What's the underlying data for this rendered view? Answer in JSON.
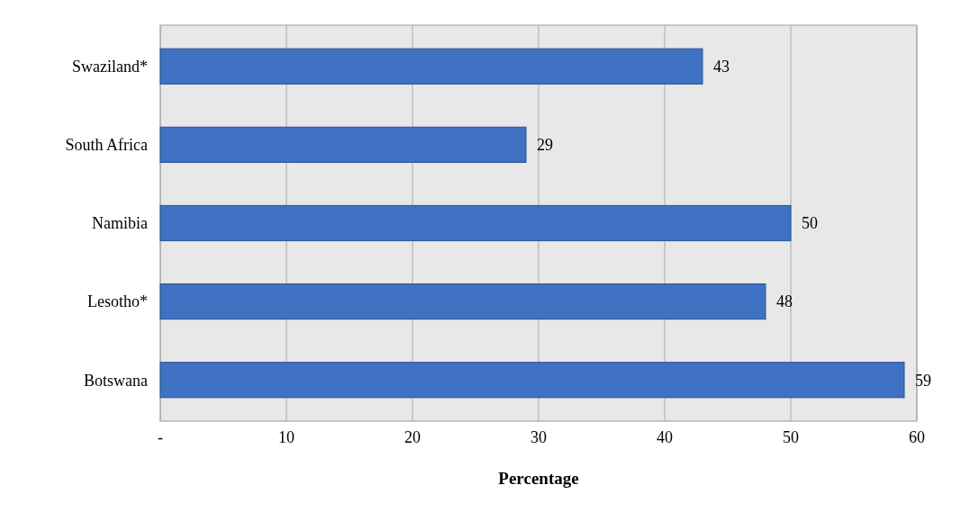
{
  "chart_data": {
    "type": "bar",
    "orientation": "horizontal",
    "xlabel": "Percentage",
    "categories": [
      "Swaziland*",
      "South Africa",
      "Namibia",
      "Lesotho*",
      "Botswana"
    ],
    "values": [
      43,
      29,
      50,
      48,
      59
    ],
    "color": "#3f72c2",
    "xlim": [
      0,
      60
    ],
    "xticks": [
      {
        "value": 0,
        "label": "-"
      },
      10,
      20,
      30,
      40,
      50,
      60
    ],
    "grid": "x",
    "data_labels": true
  }
}
